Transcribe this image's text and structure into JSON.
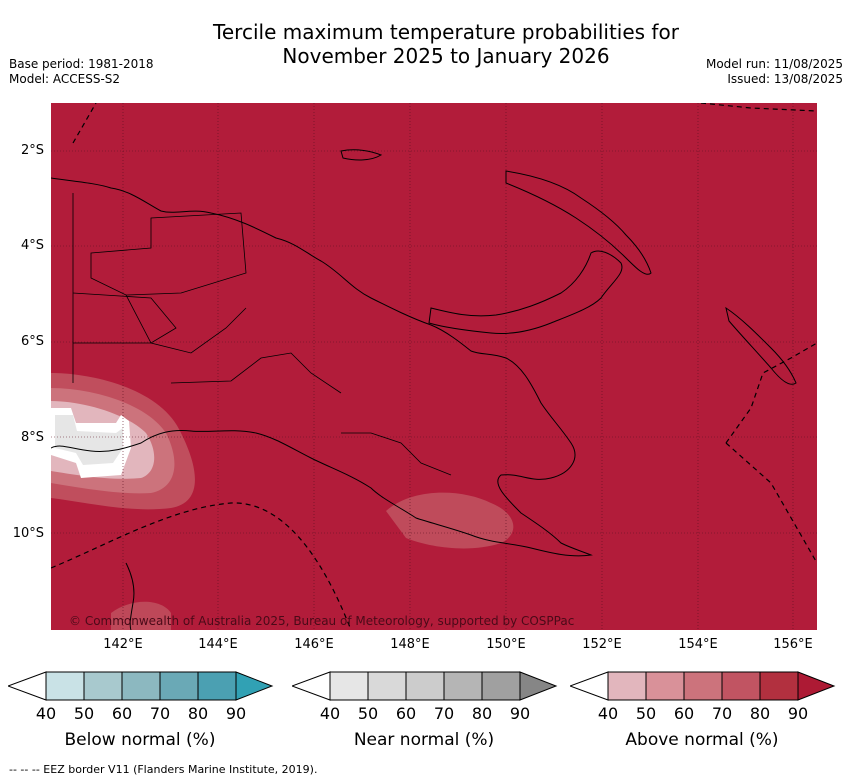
{
  "title_line1": "Tercile maximum temperature probabilities for",
  "title_line2": "November 2025 to January 2026",
  "base_period": "Base period: 1981-2018",
  "model": "Model: ACCESS-S2",
  "model_run": "Model run: 11/08/2025",
  "issued": "Issued: 13/08/2025",
  "lat_labels": [
    "2°S",
    "4°S",
    "6°S",
    "8°S",
    "10°S"
  ],
  "lon_labels": [
    "142°E",
    "144°E",
    "146°E",
    "148°E",
    "150°E",
    "152°E",
    "154°E",
    "156°E"
  ],
  "copyright": "© Commonwealth of Australia 2025, Bureau of Meteorology, supported by COSPPac",
  "colorbars": [
    {
      "label": "Below normal (%)",
      "ticks": [
        "40",
        "50",
        "60",
        "70",
        "80",
        "90"
      ],
      "colors": [
        "#c9e2e6",
        "#a8c9ce",
        "#8cb8c0",
        "#6aa9b6",
        "#4ba0b2",
        "#31a1b4"
      ]
    },
    {
      "label": "Near normal (%)",
      "ticks": [
        "40",
        "50",
        "60",
        "70",
        "80",
        "90"
      ],
      "colors": [
        "#e6e6e6",
        "#d9d9d9",
        "#cccccc",
        "#b5b5b5",
        "#a0a0a0",
        "#868686"
      ]
    },
    {
      "label": "Above normal (%)",
      "ticks": [
        "40",
        "50",
        "60",
        "70",
        "80",
        "90"
      ],
      "colors": [
        "#e2b6bd",
        "#d99199",
        "#cc737c",
        "#c15462",
        "#b2303f",
        "#ad1a34"
      ]
    }
  ],
  "map_colors": {
    "dominant": "#b21c3a",
    "grid": "#5a1020"
  },
  "footnote": "--  --  -- EEZ border V11 (Flanders Marine Institute, 2019)."
}
